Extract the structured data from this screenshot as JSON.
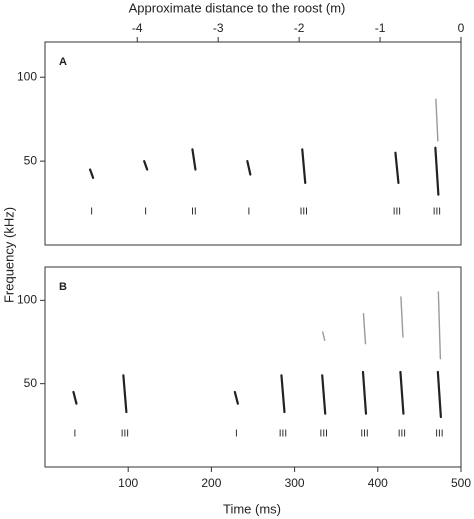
{
  "ylabel": "Frequency (kHz)",
  "chart_data": [
    {
      "type": "spectrogram",
      "panel": "A",
      "x2label": "Approximate distance to the roost (m)",
      "xlim": [
        0,
        500
      ],
      "x2lim": [
        -5.14,
        0
      ],
      "x2ticks": [
        -4,
        -3,
        -2,
        -1,
        0
      ],
      "ylim": [
        0,
        121
      ],
      "yticks": [
        50,
        100
      ],
      "calls": {
        "time": [
          56,
          121,
          179,
          245,
          311,
          423,
          471
        ],
        "fmax": [
          45,
          50,
          57,
          50,
          57,
          55,
          58
        ],
        "fmin": [
          40,
          45,
          45,
          42,
          37,
          37,
          30
        ],
        "phase": [
          "I",
          "I",
          "II",
          "I",
          "III",
          "III",
          "III"
        ]
      },
      "harmonic": {
        "fmax": [
          null,
          null,
          null,
          null,
          null,
          null,
          87
        ],
        "fmin": [
          null,
          null,
          null,
          null,
          null,
          null,
          62
        ]
      }
    },
    {
      "type": "spectrogram",
      "panel": "B",
      "xlabel": "Time (ms)",
      "xlim": [
        0,
        500
      ],
      "xticks": [
        100,
        200,
        300,
        400,
        500
      ],
      "ylim": [
        0,
        120
      ],
      "yticks": [
        50,
        100
      ],
      "calls": {
        "time": [
          36,
          96,
          230,
          286,
          335,
          384,
          429,
          474
        ],
        "fmax": [
          45,
          55,
          45,
          55,
          55,
          57,
          57,
          57
        ],
        "fmin": [
          38,
          33,
          38,
          33,
          32,
          32,
          32,
          30
        ],
        "phase": [
          "I",
          "III",
          "I",
          "III",
          "III",
          "III",
          "III",
          "III"
        ]
      },
      "harmonic": {
        "fmax": [
          null,
          null,
          null,
          null,
          81,
          92,
          102,
          105
        ],
        "fmin": [
          null,
          null,
          null,
          null,
          76,
          74,
          78,
          65
        ]
      }
    }
  ]
}
